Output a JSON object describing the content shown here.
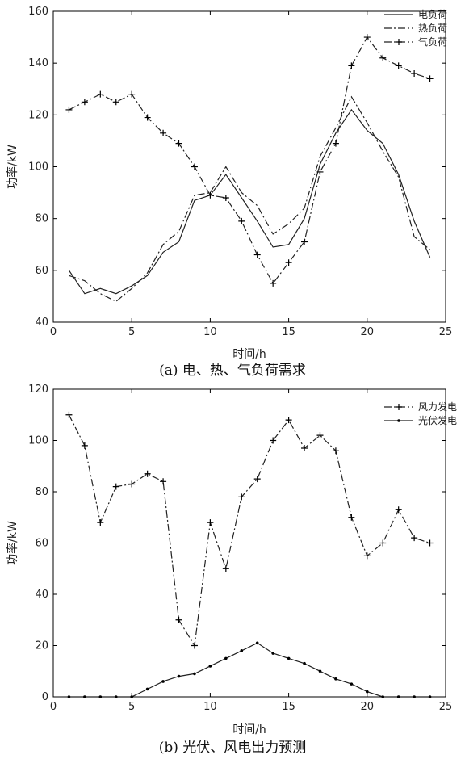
{
  "chart_data": [
    {
      "type": "line",
      "caption": "(a) 电、热、气负荷需求",
      "xlabel": "时间/h",
      "ylabel": "功率/kW",
      "xlim": [
        0,
        25
      ],
      "ylim": [
        40,
        160
      ],
      "xticks": [
        0,
        5,
        10,
        15,
        20,
        25
      ],
      "yticks": [
        40,
        60,
        80,
        100,
        120,
        140,
        160
      ],
      "grid": false,
      "legend_position": "top-right",
      "x": [
        1,
        2,
        3,
        4,
        5,
        6,
        7,
        8,
        9,
        10,
        11,
        12,
        13,
        14,
        15,
        16,
        17,
        18,
        19,
        20,
        21,
        22,
        23,
        24
      ],
      "series": [
        {
          "name": "电负荷",
          "style": "solid",
          "marker": "none",
          "values": [
            60,
            51,
            53,
            51,
            54,
            58,
            67,
            71,
            87,
            89,
            97,
            88,
            79,
            69,
            70,
            80,
            101,
            113,
            122,
            114,
            109,
            97,
            79,
            65
          ]
        },
        {
          "name": "热负荷",
          "style": "dashdot",
          "marker": "none",
          "values": [
            58,
            56,
            51,
            48,
            53,
            59,
            70,
            75,
            89,
            90,
            100,
            90,
            85,
            74,
            78,
            84,
            104,
            115,
            127,
            117,
            106,
            96,
            73,
            68
          ]
        },
        {
          "name": "气负荷",
          "style": "dashdot",
          "marker": "plus",
          "values": [
            122,
            125,
            128,
            125,
            128,
            119,
            113,
            109,
            100,
            89,
            88,
            79,
            66,
            55,
            63,
            71,
            98,
            109,
            139,
            150,
            142,
            139,
            136,
            134
          ]
        }
      ]
    },
    {
      "type": "line",
      "caption": "(b) 光伏、风电出力预测",
      "xlabel": "时间/h",
      "ylabel": "功率/kW",
      "xlim": [
        0,
        25
      ],
      "ylim": [
        0,
        120
      ],
      "xticks": [
        0,
        5,
        10,
        15,
        20,
        25
      ],
      "yticks": [
        0,
        20,
        40,
        60,
        80,
        100,
        120
      ],
      "grid": false,
      "legend_position": "top-right",
      "x": [
        1,
        2,
        3,
        4,
        5,
        6,
        7,
        8,
        9,
        10,
        11,
        12,
        13,
        14,
        15,
        16,
        17,
        18,
        19,
        20,
        21,
        22,
        23,
        24
      ],
      "series": [
        {
          "name": "风力发电",
          "style": "dashdot",
          "marker": "plus",
          "values": [
            110,
            98,
            68,
            82,
            83,
            87,
            84,
            30,
            20,
            68,
            50,
            78,
            85,
            100,
            108,
            97,
            102,
            96,
            70,
            55,
            60,
            73,
            62,
            60
          ]
        },
        {
          "name": "光伏发电",
          "style": "solid",
          "marker": "dot",
          "values": [
            0,
            0,
            0,
            0,
            0,
            3,
            6,
            8,
            9,
            12,
            15,
            18,
            21,
            17,
            15,
            13,
            10,
            7,
            5,
            2,
            0,
            0,
            0,
            0
          ]
        }
      ]
    }
  ]
}
